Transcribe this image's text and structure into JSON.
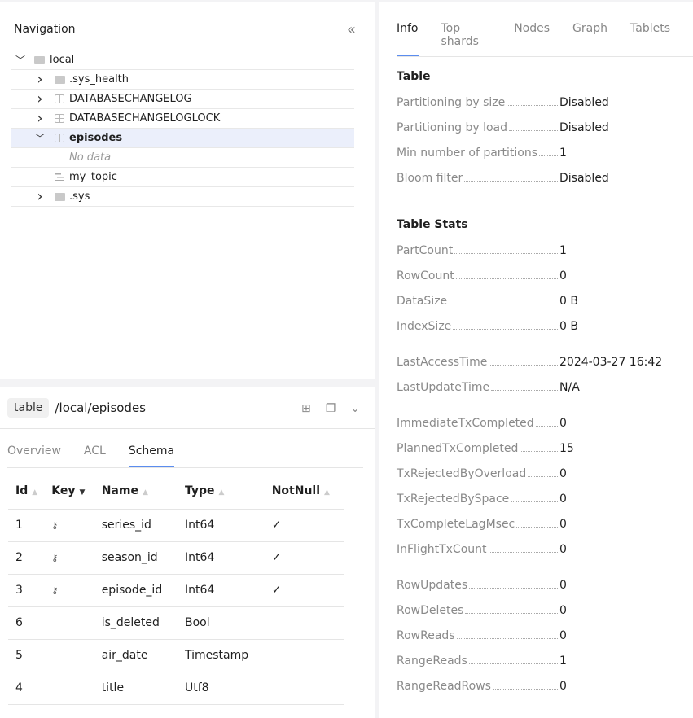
{
  "navigation": {
    "title": "Navigation",
    "tree": [
      {
        "label": "local",
        "icon": "folder-open-icon",
        "expanded": true,
        "level": 0
      },
      {
        "label": ".sys_health",
        "icon": "folder-icon",
        "level": 1,
        "chevron": "right"
      },
      {
        "label": "DATABASECHANGELOG",
        "icon": "table-icon",
        "level": 1,
        "chevron": "right"
      },
      {
        "label": "DATABASECHANGELOGLOCK",
        "icon": "table-icon",
        "level": 1,
        "chevron": "right"
      },
      {
        "label": "episodes",
        "icon": "table-icon",
        "level": 1,
        "chevron": "down",
        "selected": true
      },
      {
        "label": "No data",
        "level": 2,
        "empty": true
      },
      {
        "label": "my_topic",
        "icon": "topic-icon",
        "level": 1
      },
      {
        "label": ".sys",
        "icon": "folder-icon",
        "level": 1,
        "chevron": "right"
      }
    ]
  },
  "object": {
    "type_badge": "table",
    "path": "/local/episodes",
    "tabs": [
      "Overview",
      "ACL",
      "Schema"
    ],
    "active_tab": "Schema",
    "columns": [
      "Id",
      "Key",
      "Name",
      "Type",
      "NotNull"
    ],
    "rows": [
      {
        "id": "1",
        "key": true,
        "name": "series_id",
        "type": "Int64",
        "notnull": "✓"
      },
      {
        "id": "2",
        "key": true,
        "name": "season_id",
        "type": "Int64",
        "notnull": "✓"
      },
      {
        "id": "3",
        "key": true,
        "name": "episode_id",
        "type": "Int64",
        "notnull": "✓"
      },
      {
        "id": "6",
        "key": false,
        "name": "is_deleted",
        "type": "Bool",
        "notnull": ""
      },
      {
        "id": "5",
        "key": false,
        "name": "air_date",
        "type": "Timestamp",
        "notnull": ""
      },
      {
        "id": "4",
        "key": false,
        "name": "title",
        "type": "Utf8",
        "notnull": ""
      }
    ]
  },
  "info": {
    "tabs": [
      "Info",
      "Top shards",
      "Nodes",
      "Graph",
      "Tablets"
    ],
    "active_tab": "Info",
    "table_title": "Table",
    "table": [
      [
        "Partitioning by size",
        "Disabled"
      ],
      [
        "Partitioning by load",
        "Disabled"
      ],
      [
        "Min number of partitions",
        "1"
      ],
      [
        "Bloom filter",
        "Disabled"
      ]
    ],
    "stats_title": "Table Stats",
    "stats_groups": [
      [
        [
          "PartCount",
          "1"
        ],
        [
          "RowCount",
          "0"
        ],
        [
          "DataSize",
          "0 B"
        ],
        [
          "IndexSize",
          "0 B"
        ]
      ],
      [
        [
          "LastAccessTime",
          "2024-03-27 16:42"
        ],
        [
          "LastUpdateTime",
          "N/A"
        ]
      ],
      [
        [
          "ImmediateTxCompleted",
          "0"
        ],
        [
          "PlannedTxCompleted",
          "15"
        ],
        [
          "TxRejectedByOverload",
          "0"
        ],
        [
          "TxRejectedBySpace",
          "0"
        ],
        [
          "TxCompleteLagMsec",
          "0"
        ],
        [
          "InFlightTxCount",
          "0"
        ]
      ],
      [
        [
          "RowUpdates",
          "0"
        ],
        [
          "RowDeletes",
          "0"
        ],
        [
          "RowReads",
          "0"
        ],
        [
          "RangeReads",
          "1"
        ],
        [
          "RangeReadRows",
          "0"
        ]
      ]
    ]
  },
  "colors": {
    "accent": "#5b8def",
    "selected_row": "#ebeffb"
  }
}
